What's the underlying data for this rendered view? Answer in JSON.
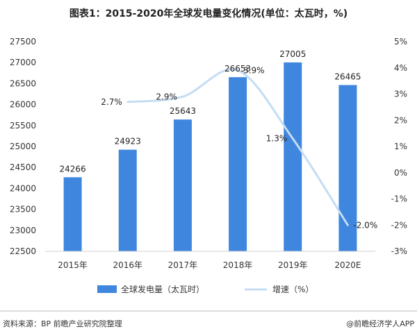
{
  "chart_data": {
    "type": "bar",
    "title": "图表1：2015-2020年全球发电量变化情况(单位：太瓦时，%)",
    "categories": [
      "2015年",
      "2016年",
      "2017年",
      "2018年",
      "2019年",
      "2020E"
    ],
    "series": [
      {
        "name": "全球发电量（太瓦时）",
        "type": "bar",
        "axis": "left",
        "color": "#3f86de",
        "values": [
          24266,
          24923,
          25643,
          26653,
          27005,
          26465
        ],
        "labels": [
          "24266",
          "24923",
          "25643",
          "26653",
          "27005",
          "26465"
        ]
      },
      {
        "name": "增速（%）",
        "type": "line",
        "axis": "right",
        "color": "#c5dcf3",
        "values": [
          null,
          2.7,
          2.9,
          3.9,
          1.3,
          -2.0
        ],
        "labels": [
          "",
          "2.7%",
          "2.9%",
          "3.9%",
          "1.3%",
          "-2.0%"
        ]
      }
    ],
    "y_left": {
      "min": 22500,
      "max": 27500,
      "ticks": [
        22500,
        23000,
        23500,
        24000,
        24500,
        25000,
        25500,
        26000,
        26500,
        27000,
        27500
      ],
      "tick_labels": [
        "22500",
        "23000",
        "23500",
        "24000",
        "24500",
        "25000",
        "25500",
        "26000",
        "26500",
        "27000",
        "27500"
      ]
    },
    "y_right": {
      "min": -3,
      "max": 5,
      "ticks": [
        -3,
        -2,
        -1,
        0,
        1,
        2,
        3,
        4,
        5
      ],
      "tick_labels": [
        "-3%",
        "-2%",
        "-1%",
        "0%",
        "1%",
        "2%",
        "3%",
        "4%",
        "5%"
      ]
    },
    "grid": false,
    "legend": "bottom"
  },
  "footer": {
    "source": "资料来源：BP 前瞻产业研究院整理",
    "brand": "@前瞻经济学人APP"
  }
}
